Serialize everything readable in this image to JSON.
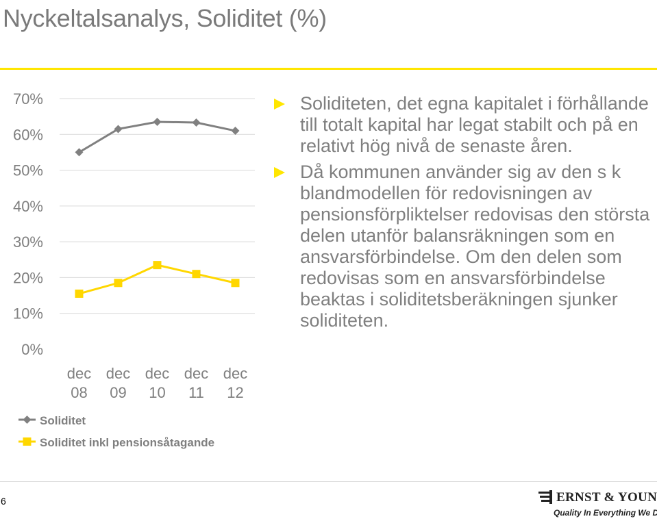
{
  "slide": {
    "title": "Nyckeltalsanalys, Soliditet (%)",
    "page_number": "6",
    "accent_color": "#ffe600"
  },
  "bullets": [
    "Soliditeten, det egna kapitalet i förhållande till totalt kapital har legat stabilt och på en relativt hög nivå de senaste åren.",
    "Då kommunen använder sig av den s k blandmodellen för redovisningen av pensionsförpliktelser redovisas den största delen utanför balansräkningen som en ansvarsförbindelse. Om den delen som redovisas som en ansvarsförbindelse beaktas i soliditetsberäkningen sjunker soliditeten."
  ],
  "logo": {
    "name": "ERNST & YOUNG",
    "tagline": "Quality In Everything We Do"
  },
  "chart_data": {
    "type": "line",
    "categories": [
      [
        "dec",
        "08"
      ],
      [
        "dec",
        "09"
      ],
      [
        "dec",
        "10"
      ],
      [
        "dec",
        "11"
      ],
      [
        "dec",
        "12"
      ]
    ],
    "y_ticks": [
      "0%",
      "10%",
      "20%",
      "30%",
      "40%",
      "50%",
      "60%",
      "70%"
    ],
    "ylim": [
      0,
      70
    ],
    "grid": true,
    "legend_position": "bottom",
    "series": [
      {
        "name": "Soliditet",
        "values": [
          55,
          61.5,
          63.5,
          63.3,
          61
        ],
        "color": "#808080",
        "marker": "diamond"
      },
      {
        "name": "Soliditet inkl pensionsåtagande",
        "values": [
          15.5,
          18.5,
          23.5,
          21,
          18.5
        ],
        "color": "#ffd700",
        "marker": "square"
      }
    ]
  }
}
